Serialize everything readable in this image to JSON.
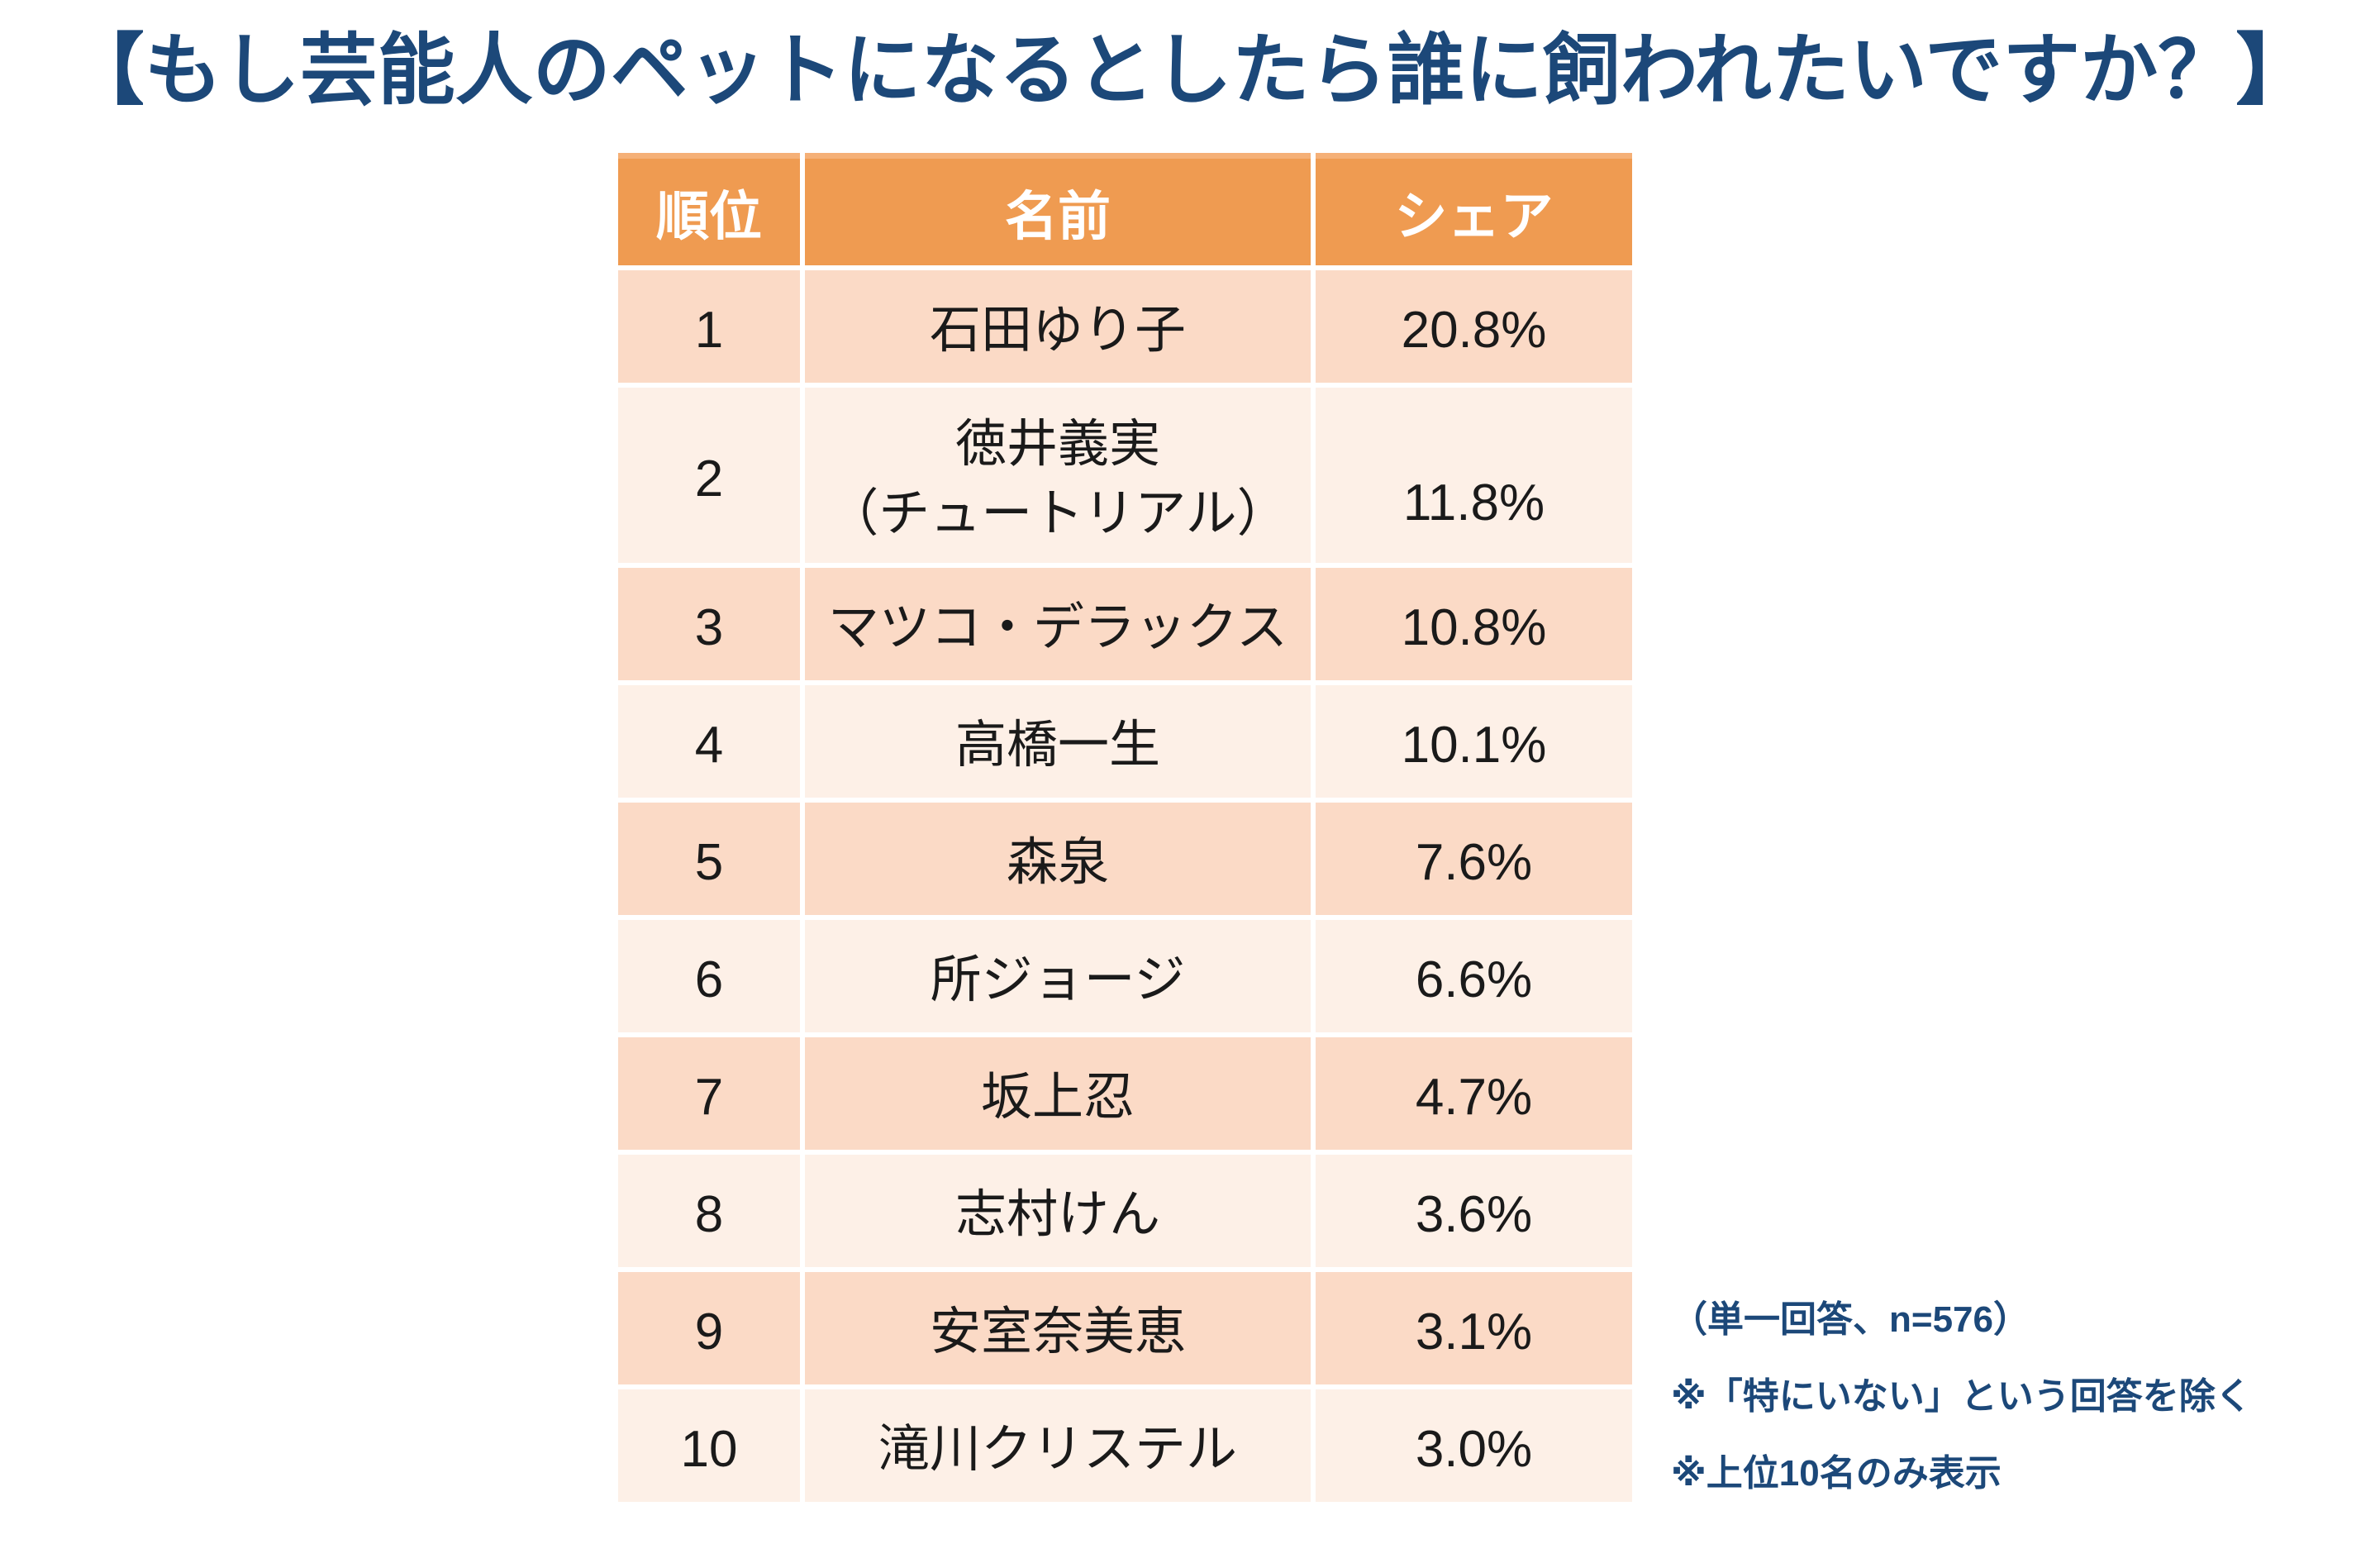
{
  "title": "【もし芸能人のペットになるとしたら誰に飼われたいですか？】",
  "table": {
    "headers": [
      "順位",
      "名前",
      "シェア"
    ],
    "rows": [
      {
        "rank": "1",
        "name": "石田ゆり子",
        "share": "20.8%"
      },
      {
        "rank": "2",
        "name": "徳井義実\n（チュートリアル）",
        "share": "11.8%"
      },
      {
        "rank": "3",
        "name": "マツコ・デラックス",
        "share": "10.8%"
      },
      {
        "rank": "4",
        "name": "高橋一生",
        "share": "10.1%"
      },
      {
        "rank": "5",
        "name": "森泉",
        "share": "7.6%"
      },
      {
        "rank": "6",
        "name": "所ジョージ",
        "share": "6.6%"
      },
      {
        "rank": "7",
        "name": "坂上忍",
        "share": "4.7%"
      },
      {
        "rank": "8",
        "name": "志村けん",
        "share": "3.6%"
      },
      {
        "rank": "9",
        "name": "安室奈美恵",
        "share": "3.1%"
      },
      {
        "rank": "10",
        "name": "滝川クリステル",
        "share": "3.0%"
      }
    ]
  },
  "notes": [
    "（単一回答、n=576）",
    "※「特にいない」という回答を除く",
    "※上位10名のみ表示"
  ],
  "colors": {
    "header-bg": "#EF9B51",
    "header-top": "#F5B077",
    "header-text": "#FFFFFF",
    "band-dark": "#FBDAC6",
    "band-light": "#FDF0E7",
    "title-color": "#1C4879",
    "note-color": "#1C4879",
    "body-text": "#1A1A1A"
  },
  "chart_data": {
    "type": "table",
    "title": "【もし芸能人のペットになるとしたら誰に飼われたいですか？】",
    "columns": [
      "順位",
      "名前",
      "シェア"
    ],
    "rows": [
      [
        1,
        "石田ゆり子",
        "20.8%"
      ],
      [
        2,
        "徳井義実（チュートリアル）",
        "11.8%"
      ],
      [
        3,
        "マツコ・デラックス",
        "10.8%"
      ],
      [
        4,
        "高橋一生",
        "10.1%"
      ],
      [
        5,
        "森泉",
        "7.6%"
      ],
      [
        6,
        "所ジョージ",
        "6.6%"
      ],
      [
        7,
        "坂上忍",
        "4.7%"
      ],
      [
        8,
        "志村けん",
        "3.6%"
      ],
      [
        9,
        "安室奈美恵",
        "3.1%"
      ],
      [
        10,
        "滝川クリステル",
        "3.0%"
      ]
    ],
    "values_pct": [
      20.8,
      11.8,
      10.8,
      10.1,
      7.6,
      6.6,
      4.7,
      3.6,
      3.1,
      3.0
    ],
    "sample_note": "（単一回答、n=576）",
    "footnotes": [
      "※「特にいない」という回答を除く",
      "※上位10名のみ表示"
    ]
  }
}
